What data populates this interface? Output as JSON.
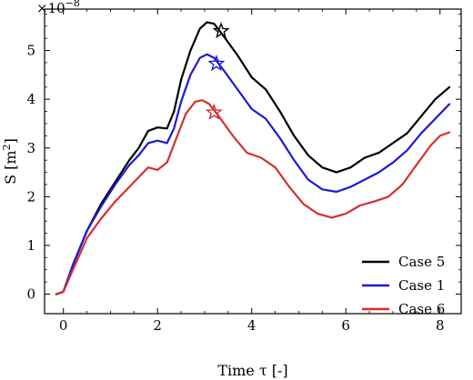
{
  "chart_data": {
    "type": "line",
    "xlabel": "Time τ [-]",
    "ylabel_main": "S [m",
    "ylabel_sup": "2",
    "ylabel_close": "]",
    "scale_base": "×10",
    "scale_exp": "−8",
    "xlim": [
      -0.4,
      8.45
    ],
    "ylim": [
      -0.4,
      5.85
    ],
    "xticks": [
      0,
      2,
      4,
      6,
      8
    ],
    "yticks": [
      0,
      1,
      2,
      3,
      4,
      5
    ],
    "legend_position": "lower-right",
    "series": [
      {
        "name": "Case 5",
        "color": "#000000",
        "points": [
          [
            -0.15,
            0
          ],
          [
            0,
            0.05
          ],
          [
            0.2,
            0.6
          ],
          [
            0.5,
            1.3
          ],
          [
            0.8,
            1.85
          ],
          [
            1.1,
            2.3
          ],
          [
            1.4,
            2.75
          ],
          [
            1.6,
            3.0
          ],
          [
            1.8,
            3.35
          ],
          [
            2.0,
            3.42
          ],
          [
            2.2,
            3.4
          ],
          [
            2.35,
            3.75
          ],
          [
            2.5,
            4.4
          ],
          [
            2.7,
            5.0
          ],
          [
            2.9,
            5.45
          ],
          [
            3.05,
            5.58
          ],
          [
            3.2,
            5.55
          ],
          [
            3.4,
            5.3
          ],
          [
            3.7,
            4.9
          ],
          [
            4.0,
            4.45
          ],
          [
            4.3,
            4.2
          ],
          [
            4.6,
            3.75
          ],
          [
            4.9,
            3.25
          ],
          [
            5.2,
            2.85
          ],
          [
            5.5,
            2.6
          ],
          [
            5.8,
            2.5
          ],
          [
            6.1,
            2.6
          ],
          [
            6.4,
            2.8
          ],
          [
            6.7,
            2.9
          ],
          [
            7.0,
            3.1
          ],
          [
            7.3,
            3.3
          ],
          [
            7.6,
            3.65
          ],
          [
            7.9,
            4.0
          ],
          [
            8.2,
            4.25
          ]
        ],
        "marker": [
          3.35,
          5.4
        ]
      },
      {
        "name": "Case 1",
        "color": "#1a1ad6",
        "points": [
          [
            -0.15,
            0
          ],
          [
            0,
            0.05
          ],
          [
            0.2,
            0.6
          ],
          [
            0.5,
            1.3
          ],
          [
            0.8,
            1.8
          ],
          [
            1.1,
            2.25
          ],
          [
            1.4,
            2.65
          ],
          [
            1.6,
            2.85
          ],
          [
            1.8,
            3.1
          ],
          [
            2.0,
            3.15
          ],
          [
            2.2,
            3.1
          ],
          [
            2.35,
            3.4
          ],
          [
            2.5,
            3.95
          ],
          [
            2.7,
            4.5
          ],
          [
            2.9,
            4.85
          ],
          [
            3.05,
            4.92
          ],
          [
            3.2,
            4.85
          ],
          [
            3.4,
            4.6
          ],
          [
            3.7,
            4.2
          ],
          [
            4.0,
            3.8
          ],
          [
            4.3,
            3.6
          ],
          [
            4.6,
            3.2
          ],
          [
            4.9,
            2.75
          ],
          [
            5.2,
            2.35
          ],
          [
            5.5,
            2.15
          ],
          [
            5.8,
            2.1
          ],
          [
            6.1,
            2.2
          ],
          [
            6.4,
            2.35
          ],
          [
            6.7,
            2.5
          ],
          [
            7.0,
            2.7
          ],
          [
            7.3,
            2.95
          ],
          [
            7.6,
            3.3
          ],
          [
            7.9,
            3.6
          ],
          [
            8.2,
            3.9
          ]
        ],
        "marker": [
          3.25,
          4.73
        ]
      },
      {
        "name": "Case 6",
        "color": "#d62f2f",
        "points": [
          [
            -0.15,
            0
          ],
          [
            0,
            0.05
          ],
          [
            0.2,
            0.5
          ],
          [
            0.5,
            1.15
          ],
          [
            0.8,
            1.55
          ],
          [
            1.1,
            1.9
          ],
          [
            1.4,
            2.2
          ],
          [
            1.6,
            2.4
          ],
          [
            1.8,
            2.6
          ],
          [
            2.0,
            2.55
          ],
          [
            2.2,
            2.7
          ],
          [
            2.4,
            3.2
          ],
          [
            2.6,
            3.7
          ],
          [
            2.8,
            3.95
          ],
          [
            2.95,
            3.98
          ],
          [
            3.1,
            3.9
          ],
          [
            3.3,
            3.65
          ],
          [
            3.6,
            3.25
          ],
          [
            3.9,
            2.9
          ],
          [
            4.2,
            2.8
          ],
          [
            4.5,
            2.6
          ],
          [
            4.8,
            2.2
          ],
          [
            5.1,
            1.85
          ],
          [
            5.4,
            1.65
          ],
          [
            5.7,
            1.57
          ],
          [
            6.0,
            1.65
          ],
          [
            6.3,
            1.82
          ],
          [
            6.6,
            1.9
          ],
          [
            6.9,
            2.0
          ],
          [
            7.2,
            2.25
          ],
          [
            7.5,
            2.65
          ],
          [
            7.8,
            3.05
          ],
          [
            8.0,
            3.25
          ],
          [
            8.2,
            3.32
          ]
        ],
        "marker": [
          3.2,
          3.73
        ]
      }
    ]
  }
}
